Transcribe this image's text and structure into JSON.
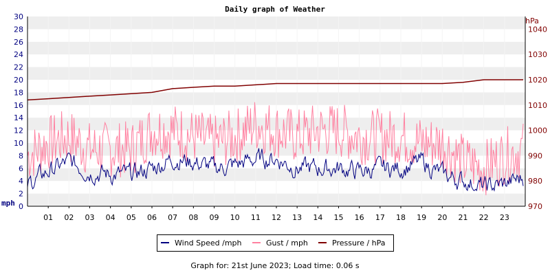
{
  "chart_data": {
    "type": "line",
    "title": "Daily graph of Weather",
    "ylabel_left": "mph",
    "ylabel_right": "hPa",
    "ylim_left": [
      0,
      30
    ],
    "yticks_left": [
      0,
      2,
      4,
      6,
      8,
      10,
      12,
      14,
      16,
      18,
      20,
      22,
      24,
      26,
      28,
      30
    ],
    "ylim_right": [
      970,
      1045
    ],
    "yticks_right": [
      970,
      980,
      990,
      1000,
      1010,
      1020,
      1030,
      1040
    ],
    "x_categories": [
      "01",
      "02",
      "03",
      "04",
      "05",
      "06",
      "07",
      "08",
      "09",
      "10",
      "11",
      "12",
      "13",
      "14",
      "15",
      "16",
      "17",
      "18",
      "19",
      "20",
      "21",
      "22",
      "23"
    ],
    "grid": true,
    "legend_position": "bottom",
    "series": [
      {
        "name": "Wind Speed /mph",
        "axis": "left",
        "color": "#000080",
        "x_hours": [
          0,
          1,
          2,
          3,
          4,
          5,
          6,
          7,
          8,
          9,
          10,
          11,
          12,
          13,
          14,
          15,
          16,
          17,
          18,
          19,
          20,
          21,
          22,
          23,
          23.9
        ],
        "values": [
          3.5,
          5.5,
          7,
          5.5,
          5,
          5,
          6,
          7.5,
          7,
          6,
          6.5,
          7.5,
          7.5,
          6,
          6,
          6,
          5.5,
          6,
          6,
          7,
          5,
          4,
          3,
          3.5,
          4.5
        ]
      },
      {
        "name": "Gust / mph",
        "axis": "left",
        "color": "#ff80a0",
        "x_hours": [
          0,
          1,
          2,
          3,
          4,
          5,
          6,
          7,
          8,
          9,
          10,
          11,
          12,
          13,
          14,
          15,
          16,
          17,
          18,
          19,
          20,
          21,
          22,
          23,
          23.9
        ],
        "values": [
          8,
          10,
          11,
          9,
          9,
          9,
          12,
          12,
          11,
          10,
          11,
          13,
          12,
          11,
          12,
          12,
          11,
          11,
          11,
          10,
          10,
          7,
          6,
          8,
          9
        ]
      },
      {
        "name": "Pressure / hPa",
        "axis": "right",
        "color": "#800000",
        "x_hours": [
          0,
          1,
          2,
          3,
          4,
          5,
          6,
          7,
          8,
          9,
          10,
          11,
          12,
          13,
          14,
          15,
          16,
          17,
          18,
          19,
          20,
          21,
          22,
          23,
          23.9
        ],
        "values": [
          1012,
          1012.5,
          1013,
          1013.5,
          1014,
          1014.5,
          1015,
          1016.5,
          1017,
          1017.5,
          1017.5,
          1018,
          1018.5,
          1018.5,
          1018.5,
          1018.5,
          1018.5,
          1018.5,
          1018.5,
          1018.5,
          1018.5,
          1019,
          1020,
          1020,
          1020
        ]
      }
    ]
  },
  "footer": {
    "text": "Graph for: 21st June 2023; Load time: 0.06 s"
  }
}
